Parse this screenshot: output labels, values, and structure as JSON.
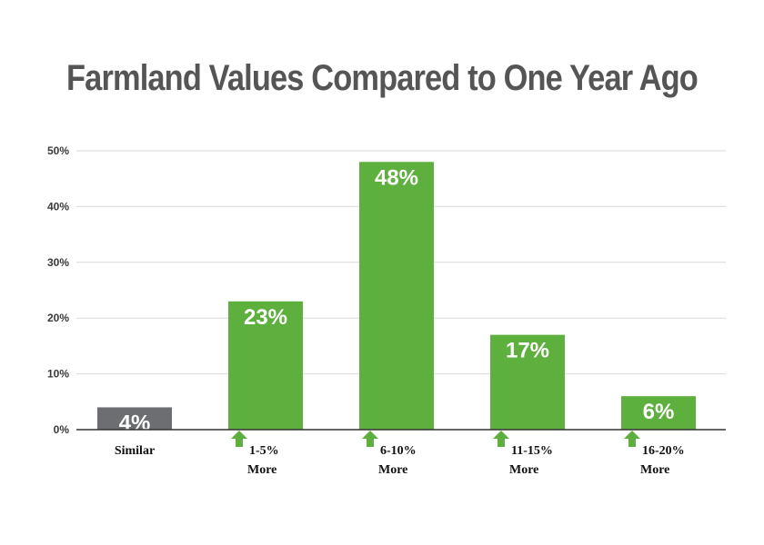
{
  "chart_data": {
    "type": "bar",
    "title": "Farmland Values Compared to One Year Ago",
    "categories": [
      {
        "line1": "Similar",
        "line2": "",
        "arrow": false
      },
      {
        "line1": "1-5%",
        "line2": "More",
        "arrow": true
      },
      {
        "line1": "6-10%",
        "line2": "More",
        "arrow": true
      },
      {
        "line1": "11-15%",
        "line2": "More",
        "arrow": true
      },
      {
        "line1": "16-20%",
        "line2": "More",
        "arrow": true
      }
    ],
    "values": [
      4,
      23,
      48,
      17,
      6
    ],
    "data_labels": [
      "4%",
      "23%",
      "48%",
      "17%",
      "6%"
    ],
    "yticks": [
      "0%",
      "10%",
      "20%",
      "30%",
      "40%",
      "50%"
    ],
    "ylim": [
      0,
      50
    ],
    "grid": true,
    "colors": {
      "neutral_bar": "#6d6e71",
      "increase_bar": "#5eb03e",
      "arrow": "#5eb03e",
      "grid": "#d9d9d9",
      "axis": "#333333",
      "title": "#555555"
    }
  }
}
